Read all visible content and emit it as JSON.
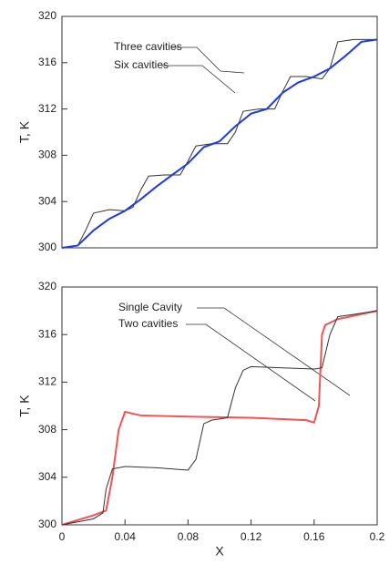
{
  "chart_data": [
    {
      "type": "line",
      "ylabel": "T, K",
      "xlim": [
        0,
        0.2
      ],
      "ylim": [
        300,
        320
      ],
      "yticks": [
        300,
        304,
        308,
        312,
        316,
        320
      ],
      "annotations": [
        "Three cavities",
        "Six cavities"
      ],
      "series": [
        {
          "name": "Three cavities",
          "color": "#333333",
          "x": [
            0,
            0.01,
            0.015,
            0.02,
            0.03,
            0.04,
            0.045,
            0.05,
            0.055,
            0.065,
            0.075,
            0.08,
            0.085,
            0.095,
            0.105,
            0.11,
            0.115,
            0.125,
            0.135,
            0.14,
            0.145,
            0.155,
            0.165,
            0.17,
            0.175,
            0.185,
            0.2
          ],
          "values": [
            300,
            300.2,
            301.5,
            303,
            303.3,
            303.2,
            303.5,
            305,
            306.2,
            306.3,
            306.3,
            307.5,
            308.8,
            309,
            309,
            310,
            311.8,
            312,
            312,
            313.5,
            314.8,
            314.8,
            314.6,
            315.5,
            317.8,
            318,
            318
          ]
        },
        {
          "name": "Six cavities",
          "color": "#1f3be0",
          "x": [
            0,
            0.01,
            0.02,
            0.03,
            0.04,
            0.05,
            0.06,
            0.07,
            0.08,
            0.09,
            0.1,
            0.11,
            0.12,
            0.13,
            0.14,
            0.15,
            0.16,
            0.17,
            0.18,
            0.19,
            0.2
          ],
          "values": [
            300,
            300.2,
            301.5,
            302.5,
            303.2,
            304.2,
            305.3,
            306.3,
            307.3,
            308.7,
            309.2,
            310.5,
            311.6,
            312,
            313.4,
            314.3,
            314.8,
            315.5,
            316.6,
            317.8,
            318
          ]
        }
      ]
    },
    {
      "type": "line",
      "ylabel": "T, K",
      "xlabel": "X",
      "xlim": [
        0,
        0.2
      ],
      "xticks": [
        0,
        0.04,
        0.08,
        0.12,
        0.16,
        0.2
      ],
      "ylim": [
        300,
        320
      ],
      "yticks": [
        300,
        304,
        308,
        312,
        316,
        320
      ],
      "annotations": [
        "Single Cavity",
        "Two cavities"
      ],
      "series": [
        {
          "name": "Single Cavity",
          "color": "#ee5555",
          "x": [
            0,
            0.02,
            0.028,
            0.032,
            0.036,
            0.04,
            0.05,
            0.08,
            0.12,
            0.155,
            0.16,
            0.163,
            0.165,
            0.167,
            0.175,
            0.2
          ],
          "values": [
            300,
            300.8,
            301.2,
            304,
            308,
            309.5,
            309.2,
            309.1,
            309,
            308.8,
            308.6,
            310,
            316,
            316.8,
            317.3,
            318
          ]
        },
        {
          "name": "Two cavities",
          "color": "#333333",
          "x": [
            0,
            0.02,
            0.026,
            0.028,
            0.032,
            0.04,
            0.06,
            0.08,
            0.085,
            0.09,
            0.095,
            0.105,
            0.11,
            0.115,
            0.12,
            0.14,
            0.16,
            0.165,
            0.17,
            0.175,
            0.2
          ],
          "values": [
            300,
            300.5,
            301,
            303,
            304.7,
            304.9,
            304.8,
            304.6,
            305.5,
            308.5,
            308.8,
            309,
            311.5,
            313,
            313.3,
            313.2,
            313.1,
            313.2,
            316,
            317.5,
            318
          ]
        }
      ]
    }
  ]
}
